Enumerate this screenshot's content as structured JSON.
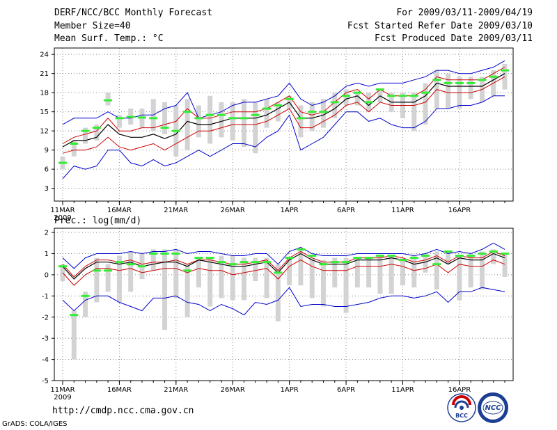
{
  "header": {
    "title": "DERF/NCC/BCC Monthly Forecast",
    "member_size": "Member Size=40",
    "variable1": "Mean Surf. Temp.: °C",
    "period": "For 2009/03/11-2009/04/19",
    "started": "Fcst Started Refer Date 2009/03/10",
    "produced": "Fcst Produced Date 2009/03/11"
  },
  "variable2": "Prec.: log(mm/d)",
  "footer": {
    "url": "http://cmdp.ncc.cma.gov.cn",
    "grads": "GrADS: COLA/IGES",
    "logo1": "BCC",
    "logo2": "NCC"
  },
  "colors": {
    "ensemble_mean": "#000000",
    "spread": "#cc0000",
    "extreme": "#0000cc",
    "median": "#33ee33",
    "box": "#d3d3d3"
  },
  "chart_data": [
    {
      "type": "line",
      "title": "Mean Surf. Temp.: °C",
      "x_tick_labels": [
        "11MAR",
        "16MAR",
        "21MAR",
        "26MAR",
        "1APR",
        "6APR",
        "11APR",
        "16APR"
      ],
      "x_tick_days": [
        1,
        6,
        11,
        16,
        21,
        26,
        31,
        36
      ],
      "year_label": "2009",
      "ylim": [
        1,
        25
      ],
      "yticks": [
        3,
        6,
        9,
        12,
        15,
        18,
        21,
        24
      ],
      "days": [
        1,
        2,
        3,
        4,
        5,
        6,
        7,
        8,
        9,
        10,
        11,
        12,
        13,
        14,
        15,
        16,
        17,
        18,
        19,
        20,
        21,
        22,
        23,
        24,
        25,
        26,
        27,
        28,
        29,
        30,
        31,
        32,
        33,
        34,
        35,
        36,
        37,
        38,
        39,
        40
      ],
      "series": [
        {
          "name": "max",
          "values": [
            13,
            14,
            14,
            14,
            15,
            14,
            14,
            14.5,
            14.5,
            15.5,
            16,
            18,
            14,
            14.5,
            15,
            16,
            16.5,
            16.5,
            17,
            17.5,
            19.5,
            17,
            16,
            16.5,
            17.5,
            19,
            19.5,
            19,
            19.5,
            19.5,
            19.5,
            20,
            20.5,
            21.5,
            21.5,
            21,
            21,
            21.5,
            22,
            23
          ]
        },
        {
          "name": "upper",
          "values": [
            10,
            11,
            11.5,
            12,
            14,
            12,
            12,
            12.5,
            12.5,
            13,
            13.5,
            15.5,
            14,
            14,
            14.5,
            15,
            15,
            15,
            15.5,
            16.5,
            17.5,
            15,
            14.5,
            15,
            16.5,
            18,
            18.5,
            17,
            18.5,
            17.5,
            17.5,
            17.5,
            18.5,
            20.5,
            20,
            20,
            20,
            20,
            21,
            22
          ]
        },
        {
          "name": "mean",
          "values": [
            9.5,
            10.5,
            10.5,
            11,
            13,
            11.5,
            11,
            11,
            11.5,
            10.8,
            11.5,
            13.5,
            13,
            13,
            13.5,
            14,
            14,
            14,
            14.5,
            15.5,
            16.5,
            14,
            14,
            14.5,
            15.5,
            17,
            17.5,
            16,
            17.5,
            16.5,
            16.5,
            16.5,
            17.5,
            19.5,
            19,
            19,
            19,
            19,
            20,
            21
          ]
        },
        {
          "name": "lower",
          "values": [
            8.5,
            9,
            9,
            9.5,
            11,
            9.5,
            9,
            9.5,
            10,
            9,
            10,
            11,
            12,
            12,
            12.5,
            13,
            13,
            13,
            13.5,
            14.5,
            15.5,
            12.5,
            12.5,
            13.5,
            14.5,
            16,
            16.5,
            15,
            16.5,
            16,
            16,
            16,
            16.5,
            18.5,
            18,
            18,
            18,
            18.5,
            19.5,
            20.5
          ]
        },
        {
          "name": "min",
          "values": [
            4.5,
            6.5,
            6,
            6.5,
            9,
            9,
            7,
            6.5,
            7.5,
            6.5,
            7,
            8,
            9,
            8,
            9,
            10,
            10,
            9.5,
            11,
            12,
            14.5,
            9,
            10,
            11,
            13,
            15,
            15,
            13.5,
            14,
            13,
            12.5,
            12.5,
            13.5,
            15.5,
            15.5,
            16,
            16,
            16.5,
            17.5,
            17.5
          ]
        },
        {
          "name": "median",
          "values": [
            7,
            10,
            12,
            12.5,
            16.8,
            14,
            14.2,
            14.1,
            14,
            12.5,
            12,
            15,
            14,
            14.5,
            14.5,
            14,
            14,
            14.5,
            15.5,
            16,
            17,
            14,
            15,
            15,
            16.5,
            17.5,
            18,
            16.5,
            18.5,
            17.5,
            17.5,
            17.5,
            18,
            20,
            19.5,
            19.5,
            19.5,
            20,
            20.5,
            21.5
          ]
        },
        {
          "name": "box_high",
          "values": [
            8,
            10.5,
            12.5,
            13,
            18,
            14.5,
            15.5,
            15.5,
            17,
            16.5,
            16,
            17,
            16,
            17.5,
            16.5,
            16.5,
            17,
            16.5,
            17,
            16.5,
            17.5,
            16,
            16.5,
            17,
            18,
            18.5,
            18,
            18,
            18.5,
            18,
            18,
            18,
            19.5,
            21.5,
            21,
            20.5,
            20.5,
            20.5,
            21.5,
            22.5
          ]
        },
        {
          "name": "box_low",
          "values": [
            6,
            8,
            10,
            10.5,
            16,
            12.5,
            13,
            12.5,
            12,
            11.5,
            8,
            9,
            11,
            10,
            11,
            10.5,
            9.5,
            8.5,
            12.5,
            13.5,
            15.5,
            11,
            12,
            12.5,
            14,
            16,
            16,
            15,
            16.5,
            15,
            14,
            12,
            13,
            15.5,
            15.5,
            15.5,
            17,
            16.5,
            17.5,
            18.5
          ]
        }
      ]
    },
    {
      "type": "line",
      "title": "Prec.: log(mm/d)",
      "x_tick_labels": [
        "11MAR",
        "16MAR",
        "21MAR",
        "26MAR",
        "1APR",
        "6APR",
        "11APR",
        "16APR"
      ],
      "x_tick_days": [
        1,
        6,
        11,
        16,
        21,
        26,
        31,
        36
      ],
      "year_label": "2009",
      "ylim": [
        -5,
        2.2
      ],
      "yticks": [
        -5,
        -4,
        -3,
        -2,
        -1,
        0,
        1,
        2
      ],
      "days": [
        1,
        2,
        3,
        4,
        5,
        6,
        7,
        8,
        9,
        10,
        11,
        12,
        13,
        14,
        15,
        16,
        17,
        18,
        19,
        20,
        21,
        22,
        23,
        24,
        25,
        26,
        27,
        28,
        29,
        30,
        31,
        32,
        33,
        34,
        35,
        36,
        37,
        38,
        39,
        40
      ],
      "series": [
        {
          "name": "max",
          "values": [
            0.8,
            0.3,
            0.8,
            1,
            1,
            1,
            1.1,
            1,
            1.1,
            1.1,
            1.2,
            1,
            1.1,
            1.1,
            1,
            0.9,
            0.9,
            1,
            1,
            0.5,
            1.1,
            1.3,
            1,
            0.9,
            0.9,
            0.9,
            1,
            1,
            1,
            1,
            1,
            0.9,
            1,
            1.2,
            1,
            1.1,
            1,
            1.2,
            1.5,
            1.2
          ]
        },
        {
          "name": "upper",
          "values": [
            0.5,
            -0.1,
            0.4,
            0.7,
            0.7,
            0.6,
            0.7,
            0.5,
            0.6,
            0.6,
            0.7,
            0.5,
            0.7,
            0.7,
            0.6,
            0.5,
            0.5,
            0.6,
            0.7,
            0.2,
            0.8,
            1.1,
            0.8,
            0.6,
            0.6,
            0.6,
            0.8,
            0.8,
            0.8,
            0.9,
            0.8,
            0.6,
            0.7,
            0.9,
            0.6,
            0.9,
            0.8,
            0.8,
            1.1,
            0.9
          ]
        },
        {
          "name": "mean",
          "values": [
            0.4,
            -0.2,
            0.3,
            0.6,
            0.6,
            0.5,
            0.6,
            0.4,
            0.5,
            0.6,
            0.6,
            0.4,
            0.7,
            0.6,
            0.5,
            0.4,
            0.4,
            0.5,
            0.6,
            0.1,
            0.7,
            1,
            0.7,
            0.5,
            0.5,
            0.5,
            0.7,
            0.7,
            0.7,
            0.8,
            0.7,
            0.5,
            0.6,
            0.8,
            0.5,
            0.8,
            0.7,
            0.7,
            1,
            0.8
          ]
        },
        {
          "name": "lower",
          "values": [
            0.1,
            -0.5,
            0,
            0.3,
            0.3,
            0.2,
            0.3,
            0.1,
            0.2,
            0.3,
            0.3,
            0.1,
            0.3,
            0.2,
            0.2,
            0,
            0.1,
            0.2,
            0.3,
            -0.2,
            0.4,
            0.7,
            0.4,
            0.2,
            0.2,
            0.2,
            0.4,
            0.4,
            0.4,
            0.5,
            0.4,
            0.2,
            0.3,
            0.5,
            0.1,
            0.5,
            0.4,
            0.4,
            0.7,
            0.5
          ]
        },
        {
          "name": "min",
          "values": [
            -1.2,
            -1.7,
            -1.2,
            -1,
            -1,
            -1.3,
            -1.5,
            -1.7,
            -1.1,
            -1.1,
            -1,
            -1.3,
            -1.4,
            -1.7,
            -1.4,
            -1.6,
            -1.9,
            -1.3,
            -1.4,
            -1.2,
            -0.6,
            -1.5,
            -1.4,
            -1.4,
            -1.5,
            -1.5,
            -1.4,
            -1.3,
            -1.1,
            -1,
            -1,
            -1.1,
            -1,
            -0.8,
            -1.3,
            -0.8,
            -0.8,
            -0.6,
            -0.7,
            -0.8
          ]
        },
        {
          "name": "median",
          "values": [
            0.4,
            -1.9,
            -1,
            0.2,
            0.2,
            0.6,
            0.5,
            0.4,
            1,
            1,
            1,
            0.2,
            0.8,
            0.8,
            0.6,
            0.5,
            0.6,
            0.6,
            0.6,
            0.1,
            0.8,
            1.2,
            0.9,
            0.5,
            0.6,
            0.6,
            0.8,
            0.8,
            0.9,
            0.9,
            0.7,
            0.8,
            0.9,
            0.5,
            1.1,
            0.9,
            0.9,
            1,
            1.1,
            1
          ]
        },
        {
          "name": "box_high",
          "values": [
            0.5,
            -1.7,
            -0.8,
            0.8,
            0.5,
            0.9,
            1.1,
            1,
            1.2,
            1.2,
            1.2,
            0.5,
            0.8,
            0.8,
            0.9,
            0.9,
            0.8,
            0.8,
            0.8,
            0.5,
            0.8,
            1.2,
            0.8,
            0.7,
            0.8,
            0.8,
            0.8,
            0.8,
            0.9,
            0.9,
            0.8,
            0.9,
            1,
            1.1,
            1.1,
            0.9,
            1,
            1.1,
            1.2,
            1
          ]
        },
        {
          "name": "box_low",
          "values": [
            -0.3,
            -4,
            -2,
            -1.3,
            -0.8,
            -1.3,
            -0.8,
            -0.2,
            0.2,
            -2.6,
            -1.1,
            -2,
            -0.6,
            -1.5,
            -1.1,
            -1.2,
            -1.2,
            -0.3,
            -1.1,
            -2.2,
            -0.5,
            -0.5,
            -1.1,
            -1.5,
            -0.6,
            -1.8,
            -0.6,
            -0.6,
            -0.9,
            -0.9,
            -0.5,
            -0.6,
            0.1,
            -0.7,
            0.5,
            -1.2,
            -0.6,
            -0.7,
            0.5,
            -0.1
          ]
        }
      ]
    }
  ]
}
